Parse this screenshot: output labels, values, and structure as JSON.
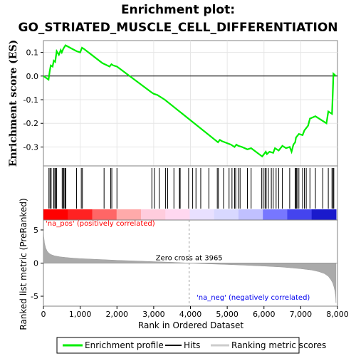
{
  "chart_data": {
    "type": "line",
    "title_line1": "Enrichment plot:",
    "title_line2": "GO_STRIATED_MUSCLE_CELL_DIFFERENTIATION",
    "es_ylabel": "Enrichment score (ES)",
    "metric_ylabel": "Ranked list metric (PreRanked)",
    "xlabel": "Rank in Ordered Dataset",
    "xlim": [
      0,
      8000
    ],
    "x_ticks": [
      0,
      1000,
      2000,
      3000,
      4000,
      5000,
      6000,
      7000,
      8000
    ],
    "x_tick_labels": [
      "0",
      "1,000",
      "2,000",
      "3,000",
      "4,000",
      "5,000",
      "6,000",
      "7,000",
      "8,000"
    ],
    "es_ylim": [
      -0.38,
      0.15
    ],
    "es_ticks": [
      0.1,
      0.0,
      -0.1,
      -0.2,
      -0.3
    ],
    "es_tick_labels": [
      "0.1",
      "0.0",
      "-0.1",
      "-0.2",
      "-0.3"
    ],
    "metric_ylim": [
      -6.5,
      6.5
    ],
    "metric_ticks": [
      5,
      0,
      -5
    ],
    "metric_tick_labels": [
      "5",
      "0",
      "-5"
    ],
    "zero_cross_rank": 3965,
    "zero_cross_label": "Zero cross at 3965",
    "pos_label": "'na_pos' (positively correlated)",
    "neg_label": "'na_neg' (negatively correlated)",
    "total_ranks": 7960,
    "series": [
      {
        "name": "Enrichment profile",
        "color": "#00ee00",
        "x": [
          0,
          140,
          170,
          200,
          250,
          280,
          320,
          360,
          420,
          470,
          500,
          540,
          600,
          900,
          1000,
          1050,
          1100,
          1600,
          1800,
          1850,
          1900,
          2000,
          2950,
          3000,
          3100,
          3300,
          4750,
          4800,
          4850,
          5100,
          5200,
          5250,
          5300,
          5400,
          5550,
          5650,
          5950,
          6000,
          6050,
          6080,
          6150,
          6250,
          6300,
          6400,
          6500,
          6600,
          6700,
          6750,
          6800,
          6850,
          6870,
          6950,
          7050,
          7100,
          7200,
          7250,
          7400,
          7700,
          7750,
          7850,
          7870,
          7890,
          7960
        ],
        "values": [
          0.0,
          -0.015,
          0.02,
          0.045,
          0.04,
          0.065,
          0.06,
          0.105,
          0.09,
          0.11,
          0.1,
          0.115,
          0.13,
          0.105,
          0.1,
          0.12,
          0.115,
          0.055,
          0.04,
          0.05,
          0.045,
          0.04,
          -0.07,
          -0.075,
          -0.08,
          -0.1,
          -0.28,
          -0.27,
          -0.275,
          -0.29,
          -0.3,
          -0.29,
          -0.295,
          -0.3,
          -0.31,
          -0.305,
          -0.34,
          -0.33,
          -0.32,
          -0.33,
          -0.32,
          -0.325,
          -0.305,
          -0.315,
          -0.295,
          -0.305,
          -0.3,
          -0.32,
          -0.29,
          -0.28,
          -0.26,
          -0.245,
          -0.25,
          -0.23,
          -0.21,
          -0.18,
          -0.17,
          -0.2,
          -0.15,
          -0.16,
          -0.08,
          0.01,
          0.0
        ]
      },
      {
        "name": "Hits",
        "color": "#000000",
        "x": [
          150,
          180,
          210,
          280,
          310,
          330,
          360,
          510,
          540,
          560,
          590,
          610,
          900,
          1030,
          1060,
          1650,
          1830,
          1860,
          2000,
          2950,
          3020,
          3150,
          3320,
          3380,
          3550,
          3700,
          3720,
          3950,
          4060,
          4150,
          4280,
          4500,
          4730,
          4760,
          4900,
          5050,
          5130,
          5200,
          5230,
          5300,
          5350,
          5550,
          5650,
          5940,
          5980,
          6030,
          6060,
          6120,
          6200,
          6250,
          6330,
          6400,
          6500,
          6700,
          6850,
          6870,
          6880,
          6900,
          6950,
          7050,
          7100,
          7150,
          7250,
          7400,
          7600,
          7750,
          7850,
          7880,
          7900
        ]
      },
      {
        "name": "Ranking metric scores",
        "color": "#aaaaaa",
        "x": [
          0,
          10,
          30,
          60,
          100,
          150,
          200,
          300,
          450,
          600,
          800,
          1000,
          1500,
          2000,
          2500,
          3000,
          3500,
          3965,
          4500,
          5000,
          5500,
          6000,
          6500,
          7000,
          7300,
          7500,
          7650,
          7750,
          7820,
          7870,
          7900,
          7930,
          7950,
          7960
        ],
        "values": [
          5.2,
          4.0,
          3.0,
          2.3,
          1.8,
          1.5,
          1.3,
          1.1,
          0.95,
          0.85,
          0.75,
          0.68,
          0.55,
          0.42,
          0.32,
          0.22,
          0.12,
          0.0,
          -0.12,
          -0.22,
          -0.32,
          -0.45,
          -0.6,
          -0.85,
          -1.05,
          -1.3,
          -1.6,
          -2.0,
          -2.5,
          -3.0,
          -3.5,
          -4.2,
          -5.0,
          -6.0
        ]
      }
    ],
    "colorbar": {
      "colors": [
        "#ff0000",
        "#ff2222",
        "#ff6666",
        "#ffaaaa",
        "#ffccdd",
        "#ffd8f0",
        "#e8e0ff",
        "#d8d8ff",
        "#c0c0ff",
        "#7777ff",
        "#4444ee",
        "#1a1acc"
      ]
    },
    "legend": [
      "Enrichment profile",
      "Hits",
      "Ranking metric scores"
    ]
  }
}
